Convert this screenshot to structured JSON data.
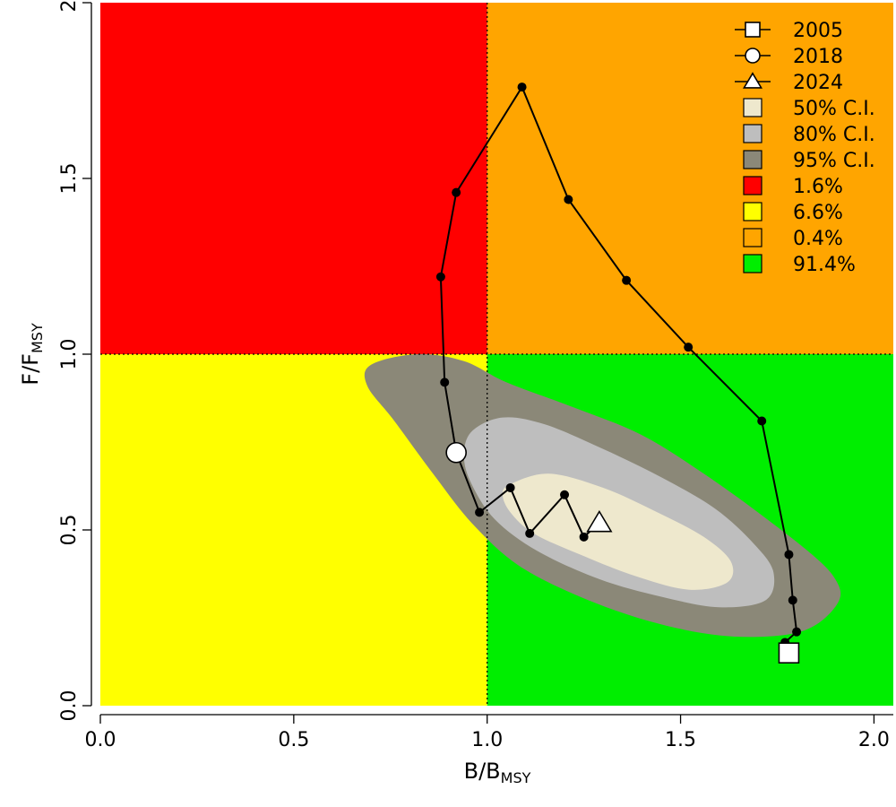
{
  "chart_data": {
    "type": "scatter",
    "subtype": "kobe-plot",
    "xlabel": {
      "main": "B/B",
      "sub": "MSY"
    },
    "ylabel": {
      "main": "F/F",
      "sub": "MSY"
    },
    "xlim": [
      0,
      2.05
    ],
    "ylim": [
      0,
      2.0
    ],
    "x_ticks": [
      "0.0",
      "0.5",
      "1.0",
      "1.5",
      "2.0"
    ],
    "y_ticks": [
      "0.0",
      "0.5",
      "1.0",
      "1.5",
      "2."
    ],
    "reference_lines": {
      "x": 1.0,
      "y": 1.0,
      "style": "dotted"
    },
    "quadrants": [
      {
        "name": "top-left",
        "color": "#ff0000"
      },
      {
        "name": "top-right",
        "color": "#ffa500"
      },
      {
        "name": "bottom-left",
        "color": "#ffff00"
      },
      {
        "name": "bottom-right",
        "color": "#00ee00"
      }
    ],
    "trajectory": [
      {
        "x": 1.78,
        "y": 0.15
      },
      {
        "x": 1.77,
        "y": 0.18
      },
      {
        "x": 1.8,
        "y": 0.21
      },
      {
        "x": 1.79,
        "y": 0.3
      },
      {
        "x": 1.78,
        "y": 0.43
      },
      {
        "x": 1.71,
        "y": 0.81
      },
      {
        "x": 1.52,
        "y": 1.02
      },
      {
        "x": 1.36,
        "y": 1.21
      },
      {
        "x": 1.21,
        "y": 1.44
      },
      {
        "x": 1.09,
        "y": 1.76
      },
      {
        "x": 0.92,
        "y": 1.46
      },
      {
        "x": 0.88,
        "y": 1.22
      },
      {
        "x": 0.89,
        "y": 0.92
      },
      {
        "x": 0.92,
        "y": 0.72
      },
      {
        "x": 0.98,
        "y": 0.55
      },
      {
        "x": 1.06,
        "y": 0.62
      },
      {
        "x": 1.11,
        "y": 0.49
      },
      {
        "x": 1.2,
        "y": 0.6
      },
      {
        "x": 1.25,
        "y": 0.48
      },
      {
        "x": 1.29,
        "y": 0.52
      }
    ],
    "markers": [
      {
        "year": "2005",
        "shape": "square",
        "x": 1.78,
        "y": 0.15
      },
      {
        "year": "2018",
        "shape": "circle",
        "x": 0.92,
        "y": 0.72
      },
      {
        "year": "2024",
        "shape": "triangle",
        "x": 1.29,
        "y": 0.52
      }
    ],
    "confidence_regions": [
      {
        "label": "95% C.I.",
        "color": "#8b8878",
        "polygon": [
          [
            0.7,
            0.97
          ],
          [
            0.82,
            1.0
          ],
          [
            0.94,
            0.98
          ],
          [
            1.05,
            0.92
          ],
          [
            1.22,
            0.85
          ],
          [
            1.4,
            0.77
          ],
          [
            1.56,
            0.66
          ],
          [
            1.7,
            0.55
          ],
          [
            1.84,
            0.43
          ],
          [
            1.9,
            0.36
          ],
          [
            1.91,
            0.3
          ],
          [
            1.85,
            0.23
          ],
          [
            1.76,
            0.2
          ],
          [
            1.6,
            0.2
          ],
          [
            1.42,
            0.24
          ],
          [
            1.24,
            0.31
          ],
          [
            1.08,
            0.4
          ],
          [
            0.96,
            0.52
          ],
          [
            0.86,
            0.66
          ],
          [
            0.76,
            0.81
          ],
          [
            0.69,
            0.91
          ]
        ]
      },
      {
        "label": "80% C.I.",
        "color": "#bebebe",
        "polygon": [
          [
            0.96,
            0.78
          ],
          [
            1.04,
            0.82
          ],
          [
            1.15,
            0.8
          ],
          [
            1.3,
            0.73
          ],
          [
            1.45,
            0.65
          ],
          [
            1.59,
            0.56
          ],
          [
            1.69,
            0.46
          ],
          [
            1.74,
            0.38
          ],
          [
            1.72,
            0.3
          ],
          [
            1.6,
            0.28
          ],
          [
            1.45,
            0.31
          ],
          [
            1.29,
            0.36
          ],
          [
            1.13,
            0.44
          ],
          [
            1.02,
            0.53
          ],
          [
            0.96,
            0.63
          ],
          [
            0.94,
            0.71
          ]
        ]
      },
      {
        "label": "50% C.I.",
        "color": "#eee8cd",
        "polygon": [
          [
            1.06,
            0.63
          ],
          [
            1.16,
            0.66
          ],
          [
            1.3,
            0.62
          ],
          [
            1.44,
            0.55
          ],
          [
            1.56,
            0.48
          ],
          [
            1.63,
            0.41
          ],
          [
            1.62,
            0.35
          ],
          [
            1.52,
            0.33
          ],
          [
            1.38,
            0.37
          ],
          [
            1.24,
            0.43
          ],
          [
            1.12,
            0.49
          ],
          [
            1.06,
            0.55
          ],
          [
            1.04,
            0.6
          ]
        ]
      }
    ],
    "legend": {
      "placement": "top-right",
      "items": [
        {
          "kind": "line-marker",
          "shape": "square",
          "label": "2005"
        },
        {
          "kind": "line-marker",
          "shape": "circle",
          "label": "2018"
        },
        {
          "kind": "line-marker",
          "shape": "triangle",
          "label": "2024"
        },
        {
          "kind": "box",
          "color": "#eee8cd",
          "label": "50% C.I."
        },
        {
          "kind": "box",
          "color": "#bebebe",
          "label": "80% C.I."
        },
        {
          "kind": "box",
          "color": "#8b8878",
          "label": "95% C.I."
        },
        {
          "kind": "box",
          "color": "#ff0000",
          "label": "1.6%"
        },
        {
          "kind": "box",
          "color": "#ffff00",
          "label": "6.6%"
        },
        {
          "kind": "box",
          "color": "#ffa500",
          "label": "0.4%"
        },
        {
          "kind": "box",
          "color": "#00ee00",
          "label": "91.4%"
        }
      ]
    }
  }
}
